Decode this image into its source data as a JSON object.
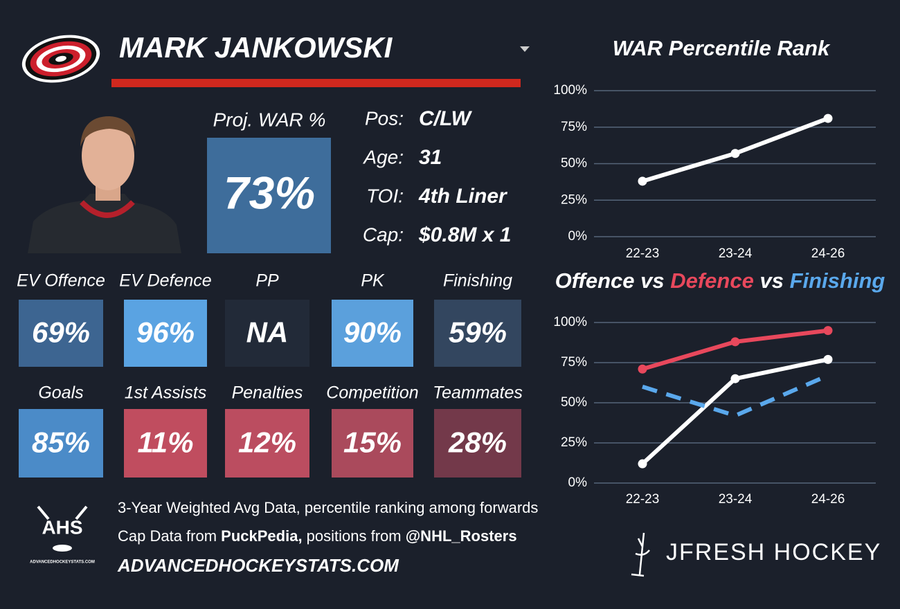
{
  "header": {
    "player": "MARK JANKOWSKI"
  },
  "proj_war": {
    "label": "Proj. WAR %",
    "value": "73%",
    "color": "#3e6d9b"
  },
  "info": [
    {
      "label": "Pos:",
      "value": "C/LW"
    },
    {
      "label": "Age:",
      "value": "31"
    },
    {
      "label": "TOI:",
      "value": "4th Liner"
    },
    {
      "label": "Cap:",
      "value": "$0.8M x 1"
    }
  ],
  "tiles": [
    [
      {
        "label": "EV Offence",
        "value": "69%",
        "color": "#3d6591"
      },
      {
        "label": "EV Defence",
        "value": "96%",
        "color": "#5aa3e2"
      },
      {
        "label": "PP",
        "value": "NA",
        "color": "#222a38"
      },
      {
        "label": "PK",
        "value": "90%",
        "color": "#5ba0dc"
      },
      {
        "label": "Finishing",
        "value": "59%",
        "color": "#33465f"
      }
    ],
    [
      {
        "label": "Goals",
        "value": "85%",
        "color": "#4b8bc8"
      },
      {
        "label": "1st Assists",
        "value": "11%",
        "color": "#c04d5f"
      },
      {
        "label": "Penalties",
        "value": "12%",
        "color": "#bb4d60"
      },
      {
        "label": "Competition",
        "value": "15%",
        "color": "#aa4a5c"
      },
      {
        "label": "Teammates",
        "value": "28%",
        "color": "#73394a"
      }
    ]
  ],
  "footer": {
    "line1": "3-Year Weighted Avg Data, percentile ranking among forwards",
    "line2": [
      {
        "text": "Cap Data from ",
        "bold": false
      },
      {
        "text": "PuckPedia,",
        "bold": true
      },
      {
        "text": " positions from ",
        "bold": false
      },
      {
        "text": "@NHL_Rosters",
        "bold": true
      }
    ],
    "site": "ADVANCEDHOCKEYSTATS.COM"
  },
  "logos": {
    "ahs": "AHS",
    "ahs_site": "ADVANCEDHOCKEYSTATS.COM",
    "brand": "JFRESH HOCKEY"
  },
  "chart_data": [
    {
      "type": "line",
      "title": "WAR Percentile Rank",
      "categories": [
        "22-23",
        "23-24",
        "24-26"
      ],
      "series": [
        {
          "color": "#ffffff",
          "values": [
            38,
            57,
            81
          ],
          "markers": true,
          "line_style": "solid"
        }
      ],
      "ylim": [
        0,
        100
      ],
      "yticks": [
        {
          "value": 0,
          "label": "0%"
        },
        {
          "value": 25,
          "label": "25%"
        },
        {
          "value": 50,
          "label": "50%"
        },
        {
          "value": 75,
          "label": "75%"
        },
        {
          "value": 100,
          "label": "100%"
        }
      ],
      "grid": true
    },
    {
      "type": "line",
      "legend_separator": "vs",
      "categories": [
        "22-23",
        "23-24",
        "24-26"
      ],
      "series": [
        {
          "name": "Offence",
          "color": "#ffffff",
          "values": [
            12,
            65,
            77
          ],
          "markers": true,
          "line_style": "solid"
        },
        {
          "name": "Defence",
          "color": "#e8485c",
          "values": [
            71,
            88,
            95
          ],
          "markers": true,
          "line_style": "solid"
        },
        {
          "name": "Finishing",
          "color": "#5aa8ec",
          "values": [
            60,
            42,
            67
          ],
          "markers": false,
          "line_style": "dashed"
        }
      ],
      "ylim": [
        0,
        100
      ],
      "yticks": [
        {
          "value": 0,
          "label": "0%"
        },
        {
          "value": 25,
          "label": "25%"
        },
        {
          "value": 50,
          "label": "50%"
        },
        {
          "value": 75,
          "label": "75%"
        },
        {
          "value": 100,
          "label": "100%"
        }
      ],
      "grid": true
    }
  ]
}
